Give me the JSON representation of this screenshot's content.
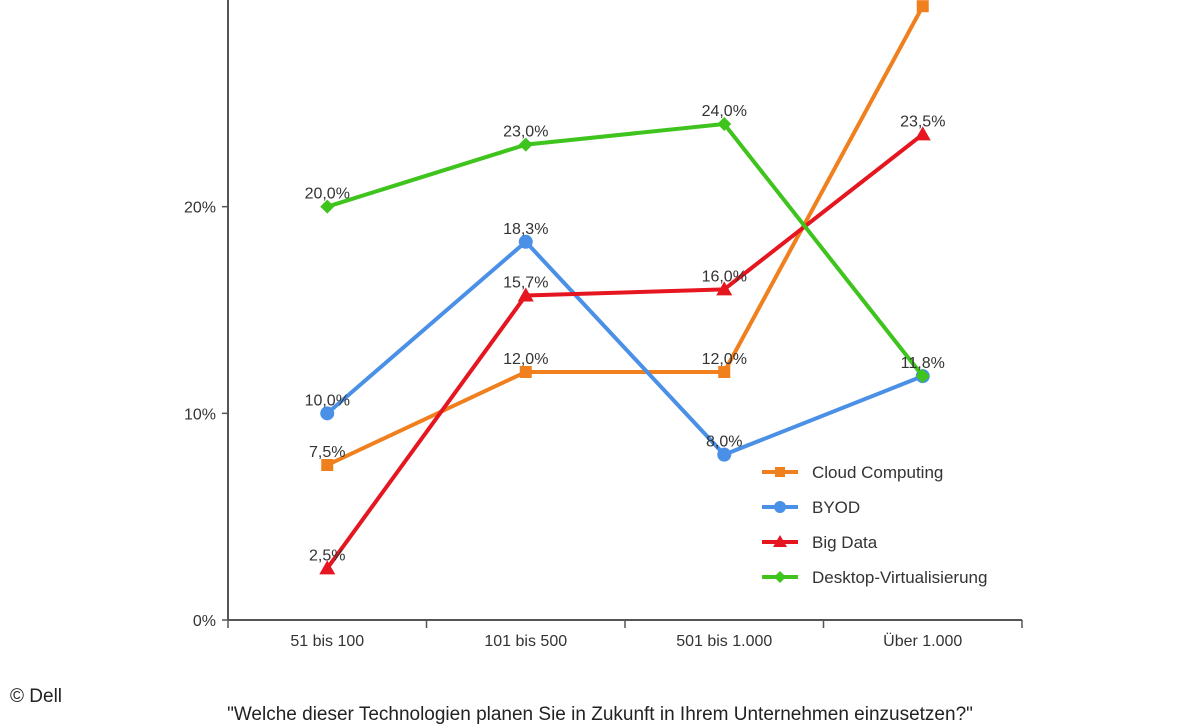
{
  "credit": "© Dell",
  "caption": "\"Welche dieser Technologien planen Sie in Zukunft in Ihrem Unternehmen einzusetzen?\"",
  "chart_data": {
    "type": "line",
    "categories": [
      "51 bis 100",
      "101 bis 500",
      "501 bis 1.000",
      "Über 1.000"
    ],
    "ylim": [
      0,
      30
    ],
    "yticks": [
      {
        "value": 0,
        "label": "0%"
      },
      {
        "value": 10,
        "label": "10%"
      },
      {
        "value": 20,
        "label": "20%"
      }
    ],
    "legend_position": "lower-right",
    "series": [
      {
        "name": "Cloud Computing",
        "color": "#f07f1e",
        "marker": "square",
        "values": [
          7.5,
          12.0,
          12.0,
          29.7
        ],
        "labels": [
          "7,5%",
          "12,0%",
          "12,0%",
          ""
        ]
      },
      {
        "name": "BYOD",
        "color": "#4a90e6",
        "marker": "circle",
        "values": [
          10.0,
          18.3,
          8.0,
          11.8
        ],
        "labels": [
          "10,0%",
          "18,3%",
          "8,0%",
          "11,8%"
        ]
      },
      {
        "name": "Big Data",
        "color": "#e5161f",
        "marker": "triangle",
        "values": [
          2.5,
          15.7,
          16.0,
          23.5
        ],
        "labels": [
          "2,5%",
          "15,7%",
          "16,0%",
          "23,5%"
        ]
      },
      {
        "name": "Desktop-Virtualisierung",
        "color": "#3ec41c",
        "marker": "diamond",
        "values": [
          20.0,
          23.0,
          24.0,
          11.8
        ],
        "labels": [
          "20,0%",
          "23,0%",
          "24,0%",
          ""
        ]
      }
    ]
  }
}
